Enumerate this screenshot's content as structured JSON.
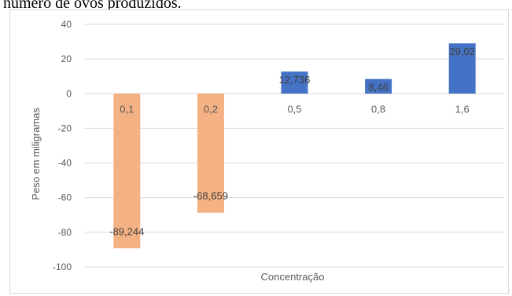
{
  "header": {
    "text": "número de ovos produzidos."
  },
  "chart_data": {
    "type": "bar",
    "title": "",
    "xlabel": "Concentração",
    "ylabel": "Peso em miligramas",
    "ylim": [
      -100,
      40
    ],
    "yticks": [
      40,
      20,
      0,
      -20,
      -40,
      -60,
      -80,
      -100
    ],
    "yticklabels": [
      "40",
      "20",
      "0",
      "-20",
      "-40",
      "-60",
      "-80",
      "-100"
    ],
    "categories": [
      "0,1",
      "0,2",
      "0,5",
      "0,8",
      "1,6"
    ],
    "values": [
      -89.244,
      -68.659,
      12.736,
      8.46,
      29.02
    ],
    "data_labels": [
      "-89,244",
      "-68,659",
      "12,736",
      "8,46",
      "29,02"
    ],
    "grid": true,
    "colors": {
      "negative": "#f4b183",
      "positive": "#4472c4",
      "gridline": "#d9d9d9"
    }
  }
}
